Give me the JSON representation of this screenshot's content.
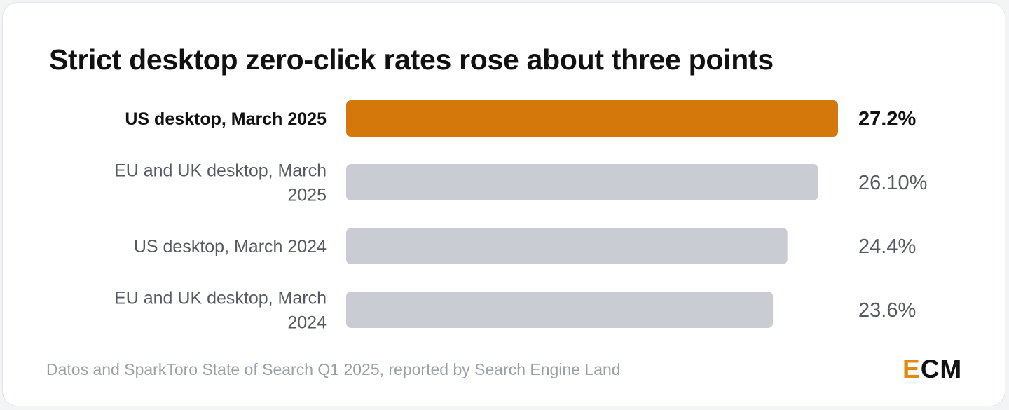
{
  "title": "Strict desktop zero-click rates rose about three points",
  "source": "Datos and SparkToro State of Search Q1 2025, reported by Search Engine Land",
  "logo": {
    "first": "E",
    "rest": "CM",
    "accent": "#e08a14"
  },
  "colors": {
    "highlight": "#d4780b",
    "muted": "#c9ccd3",
    "label_strong": "#111111",
    "label_muted": "#555a62"
  },
  "chart_data": {
    "type": "bar",
    "orientation": "horizontal",
    "categories": [
      "US desktop, March 2025",
      "EU and UK desktop, March 2025",
      "US desktop, March 2024",
      "EU and UK desktop, March 2024"
    ],
    "values": [
      27.2,
      26.1,
      24.4,
      23.6
    ],
    "value_labels": [
      "27.2%",
      "26.10%",
      "24.4%",
      "23.6%"
    ],
    "highlighted_index": 0,
    "xlim": [
      0,
      27.2
    ],
    "grid": false
  }
}
